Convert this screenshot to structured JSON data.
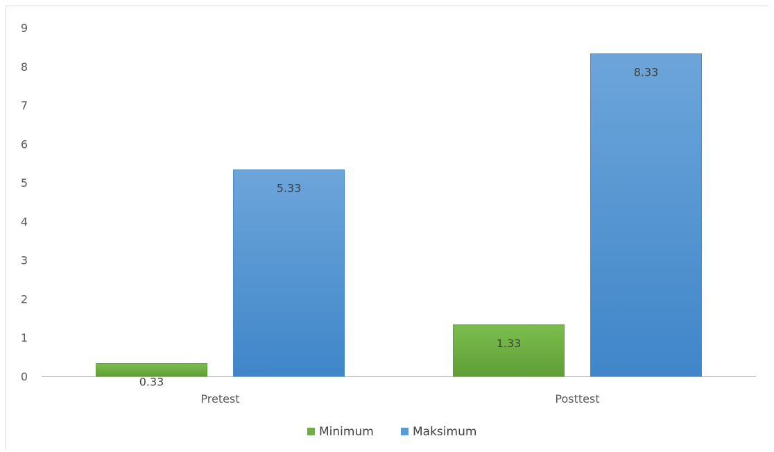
{
  "chart_data": {
    "type": "bar",
    "categories": [
      "Pretest",
      "Posttest"
    ],
    "series": [
      {
        "name": "Minimum",
        "values": [
          0.33,
          1.33
        ],
        "color": "#70ad47"
      },
      {
        "name": "Maksimum",
        "values": [
          5.33,
          8.33
        ],
        "color": "#5b9bd5"
      }
    ],
    "data_labels": [
      [
        "0.33",
        "1.33"
      ],
      [
        "5.33",
        "8.33"
      ]
    ],
    "y_ticks": [
      "0",
      "1",
      "2",
      "3",
      "4",
      "5",
      "6",
      "7",
      "8",
      "9"
    ],
    "ylim": [
      0,
      9
    ],
    "legend_position": "bottom",
    "grid": false
  }
}
